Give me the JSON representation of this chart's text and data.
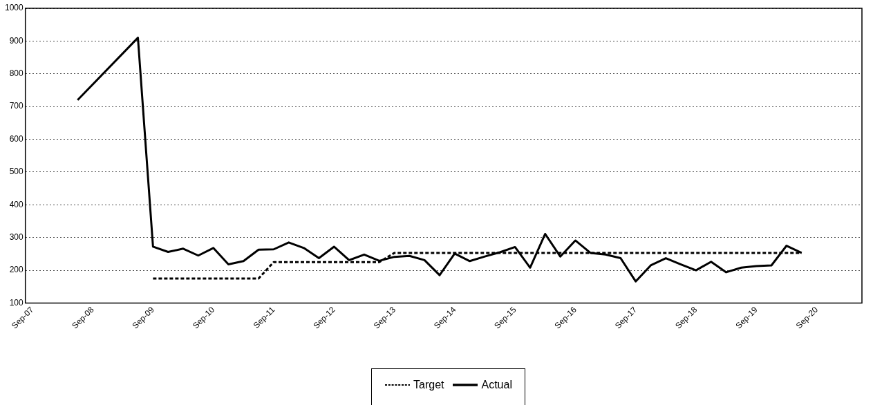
{
  "chart_data": {
    "type": "line",
    "xlim": [
      "2007-07-20",
      "2021-06-01"
    ],
    "xticks": [
      {
        "value": "2007-09",
        "label": "Sep-07"
      },
      {
        "value": "2008-09",
        "label": "Sep-08"
      },
      {
        "value": "2009-09",
        "label": "Sep-09"
      },
      {
        "value": "2010-09",
        "label": "Sep-10"
      },
      {
        "value": "2011-09",
        "label": "Sep-11"
      },
      {
        "value": "2012-09",
        "label": "Sep-12"
      },
      {
        "value": "2013-09",
        "label": "Sep-13"
      },
      {
        "value": "2014-09",
        "label": "Sep-14"
      },
      {
        "value": "2015-09",
        "label": "Sep-15"
      },
      {
        "value": "2016-09",
        "label": "Sep-16"
      },
      {
        "value": "2017-09",
        "label": "Sep-17"
      },
      {
        "value": "2018-09",
        "label": "Sep-18"
      },
      {
        "value": "2019-09",
        "label": "Sep-19"
      },
      {
        "value": "2020-09",
        "label": "Sep-20"
      }
    ],
    "ylim": [
      100,
      1000
    ],
    "yticks": [
      100,
      200,
      300,
      400,
      500,
      600,
      700,
      800,
      900,
      1000
    ],
    "grid": "y",
    "legend": "bottom",
    "marker": "none",
    "series": [
      {
        "name": "Target",
        "color": "#000000",
        "line_style": "dashed",
        "x": [
          "2009-09",
          "2011-06",
          "2011-09",
          "2013-06",
          "2013-09",
          "2020-06"
        ],
        "values": [
          175,
          175,
          225,
          225,
          253,
          253
        ]
      },
      {
        "name": "Actual",
        "color": "#000000",
        "line_style": "solid",
        "x": [
          "2008-06",
          "2009-06",
          "2009-09",
          "2009-12",
          "2010-03",
          "2010-06",
          "2010-09",
          "2010-12",
          "2011-03",
          "2011-06",
          "2011-09",
          "2011-12",
          "2012-03",
          "2012-06",
          "2012-09",
          "2012-12",
          "2013-03",
          "2013-06",
          "2013-09",
          "2013-12",
          "2014-03",
          "2014-06",
          "2014-09",
          "2014-12",
          "2015-03",
          "2015-06",
          "2015-09",
          "2015-12",
          "2016-03",
          "2016-06",
          "2016-09",
          "2016-12",
          "2017-03",
          "2017-06",
          "2017-09",
          "2017-12",
          "2018-03",
          "2018-06",
          "2018-09",
          "2018-12",
          "2019-03",
          "2019-06",
          "2019-09",
          "2019-12",
          "2020-03",
          "2020-06"
        ],
        "values": [
          720,
          910,
          272,
          256,
          266,
          245,
          268,
          218,
          228,
          263,
          264,
          285,
          268,
          237,
          272,
          231,
          248,
          229,
          241,
          244,
          231,
          185,
          251,
          228,
          242,
          255,
          271,
          208,
          311,
          242,
          291,
          253,
          248,
          237,
          166,
          215,
          237,
          218,
          200,
          226,
          194,
          208,
          213,
          215,
          275,
          253
        ]
      }
    ]
  }
}
